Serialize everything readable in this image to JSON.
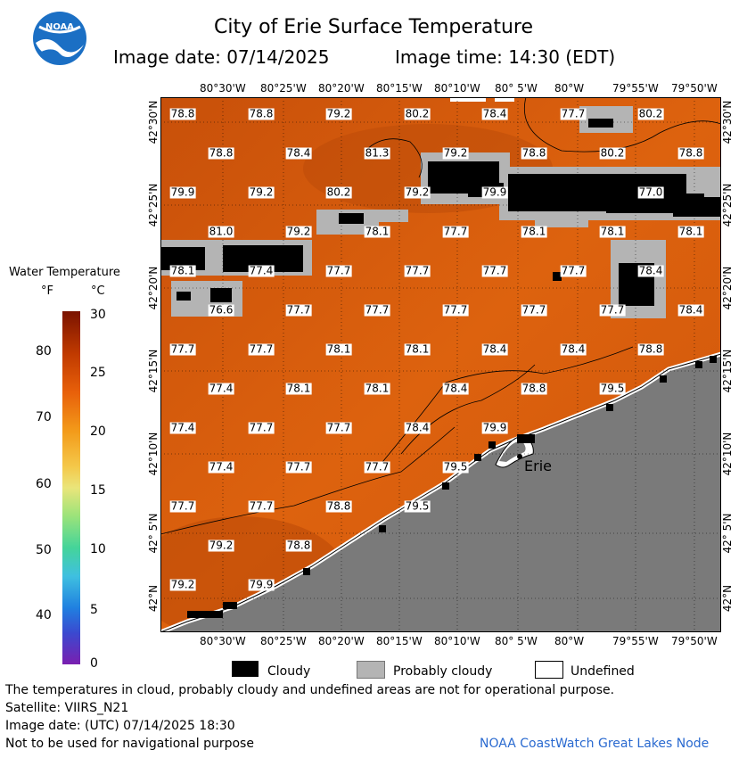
{
  "header": {
    "logo_text": "NOAA",
    "title": "City of Erie Surface Temperature",
    "image_date": "Image date: 07/14/2025",
    "image_time": "Image time: 14:30 (EDT)"
  },
  "legend": {
    "title": "Water Temperature",
    "unit_f": "°F",
    "unit_c": "°C",
    "f_ticks": [
      "80",
      "70",
      "60",
      "50",
      "40"
    ],
    "c_ticks": [
      "30",
      "25",
      "20",
      "15",
      "10",
      "5",
      "0"
    ],
    "items": [
      {
        "label": "Cloudy",
        "color": "#000000"
      },
      {
        "label": "Probably cloudy",
        "color": "#b4b4b4"
      },
      {
        "label": "Undefined",
        "color": "#ffffff"
      }
    ]
  },
  "map": {
    "water_color": "#d25a0c",
    "land_color": "#7a7a7a",
    "lon_ticks": [
      "80°30'W",
      "80°25'W",
      "80°20'W",
      "80°15'W",
      "80°10'W",
      "80° 5'W",
      "80°W",
      "79°55'W",
      "79°50'W"
    ],
    "lat_ticks": [
      "42°30'N",
      "42°25'N",
      "42°20'N",
      "42°15'N",
      "42°10'N",
      "42° 5'N",
      "42°N"
    ],
    "city_label": "Erie",
    "temperature_rows": [
      [
        "78.8",
        "78.8",
        "79.2",
        "80.2",
        "78.4",
        "77.7",
        "80.2"
      ],
      [
        "78.8",
        "78.4",
        "81.3",
        "79.2",
        "78.8",
        "80.2",
        "78.8"
      ],
      [
        "79.9",
        "79.2",
        "80.2",
        "79.2",
        "79.9",
        "77.0"
      ],
      [
        "81.0",
        "79.2",
        "78.1",
        "77.7",
        "78.1",
        "78.1",
        "78.1"
      ],
      [
        "78.1",
        "77.4",
        "77.7",
        "77.7",
        "77.7",
        "77.7",
        "78.4"
      ],
      [
        "76.6",
        "77.7",
        "77.7",
        "77.7",
        "77.7",
        "77.7",
        "78.4"
      ],
      [
        "77.7",
        "77.7",
        "78.1",
        "78.1",
        "78.4",
        "78.4",
        "78.8"
      ],
      [
        "77.4",
        "78.1",
        "78.1",
        "78.4",
        "78.8",
        "79.5"
      ],
      [
        "77.4",
        "77.7",
        "77.7",
        "78.4",
        "79.9"
      ],
      [
        "77.4",
        "77.7",
        "77.7",
        "79.5"
      ],
      [
        "77.7",
        "77.7",
        "78.8",
        "79.5"
      ],
      [
        "79.2",
        "78.8"
      ],
      [
        "79.2",
        "79.9"
      ]
    ]
  },
  "footer": {
    "note": "The temperatures in cloud, probably cloudy and undefined areas are not for operational purpose.",
    "satellite": "Satellite: VIIRS_N21",
    "image_date_utc": "Image date: (UTC) 07/14/2025  18:30",
    "nav_warning": "Not to be used for navigational purpose",
    "credit": "NOAA CoastWatch Great Lakes Node"
  }
}
